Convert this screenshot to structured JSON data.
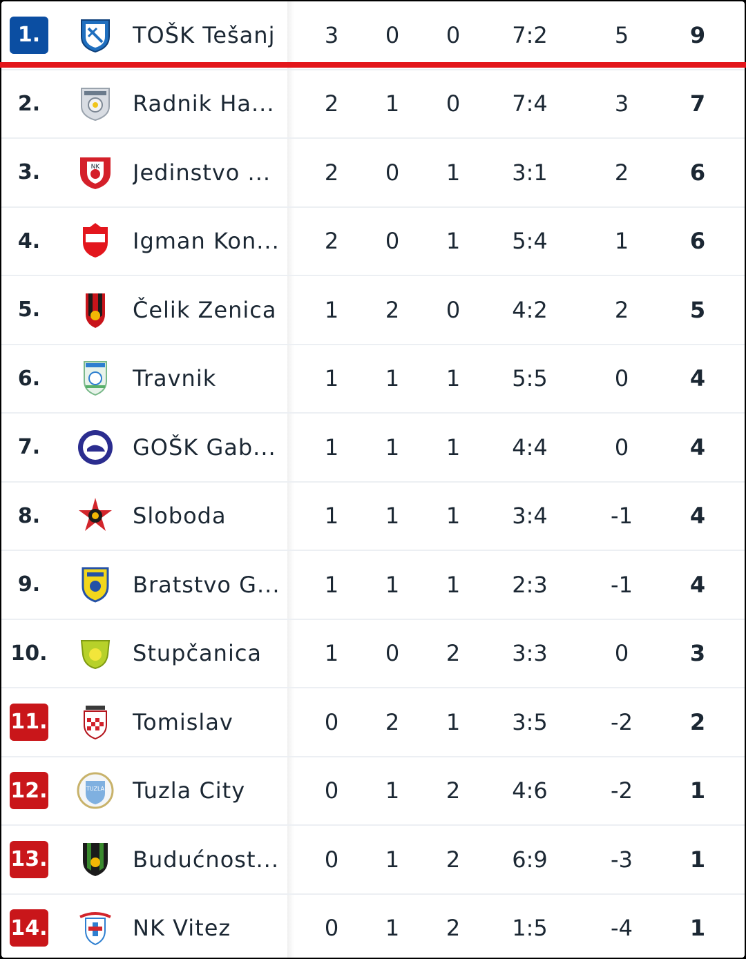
{
  "table": {
    "rows": [
      {
        "pos": "1.",
        "badge": "blue",
        "logo": "tosk-crest-icon",
        "team": "TOŠK Tešanj",
        "p": "3",
        "w": "0",
        "l": "0",
        "g": "7:2",
        "d": "5",
        "pts": "9"
      },
      {
        "pos": "2.",
        "badge": "",
        "logo": "radnik-crest-icon",
        "team": "Radnik Ha...",
        "p": "2",
        "w": "1",
        "l": "0",
        "g": "7:4",
        "d": "3",
        "pts": "7"
      },
      {
        "pos": "3.",
        "badge": "",
        "logo": "jedinstvo-crest-icon",
        "team": "Jedinstvo ...",
        "p": "2",
        "w": "0",
        "l": "1",
        "g": "3:1",
        "d": "2",
        "pts": "6"
      },
      {
        "pos": "4.",
        "badge": "",
        "logo": "igman-crest-icon",
        "team": "Igman Kon...",
        "p": "2",
        "w": "0",
        "l": "1",
        "g": "5:4",
        "d": "1",
        "pts": "6"
      },
      {
        "pos": "5.",
        "badge": "",
        "logo": "celik-crest-icon",
        "team": "Čelik Zenica",
        "p": "1",
        "w": "2",
        "l": "0",
        "g": "4:2",
        "d": "2",
        "pts": "5"
      },
      {
        "pos": "6.",
        "badge": "",
        "logo": "travnik-crest-icon",
        "team": "Travnik",
        "p": "1",
        "w": "1",
        "l": "1",
        "g": "5:5",
        "d": "0",
        "pts": "4"
      },
      {
        "pos": "7.",
        "badge": "",
        "logo": "gosk-crest-icon",
        "team": "GOŠK Gab...",
        "p": "1",
        "w": "1",
        "l": "1",
        "g": "4:4",
        "d": "0",
        "pts": "4"
      },
      {
        "pos": "8.",
        "badge": "",
        "logo": "sloboda-crest-icon",
        "team": "Sloboda",
        "p": "1",
        "w": "1",
        "l": "1",
        "g": "3:4",
        "d": "-1",
        "pts": "4"
      },
      {
        "pos": "9.",
        "badge": "",
        "logo": "bratstvo-crest-icon",
        "team": "Bratstvo G...",
        "p": "1",
        "w": "1",
        "l": "1",
        "g": "2:3",
        "d": "-1",
        "pts": "4"
      },
      {
        "pos": "10.",
        "badge": "",
        "logo": "stupcanica-crest-icon",
        "team": "Stupčanica",
        "p": "1",
        "w": "0",
        "l": "2",
        "g": "3:3",
        "d": "0",
        "pts": "3"
      },
      {
        "pos": "11.",
        "badge": "red",
        "logo": "tomislav-crest-icon",
        "team": "Tomislav",
        "p": "0",
        "w": "2",
        "l": "1",
        "g": "3:5",
        "d": "-2",
        "pts": "2"
      },
      {
        "pos": "12.",
        "badge": "red",
        "logo": "tuzla-city-crest-icon",
        "team": "Tuzla City",
        "p": "0",
        "w": "1",
        "l": "2",
        "g": "4:6",
        "d": "-2",
        "pts": "1"
      },
      {
        "pos": "13.",
        "badge": "red",
        "logo": "buducnost-crest-icon",
        "team": "Budućnost...",
        "p": "0",
        "w": "1",
        "l": "2",
        "g": "6:9",
        "d": "-3",
        "pts": "1"
      },
      {
        "pos": "14.",
        "badge": "red",
        "logo": "vitez-crest-icon",
        "team": "NK Vitez",
        "p": "0",
        "w": "1",
        "l": "2",
        "g": "1:5",
        "d": "-4",
        "pts": "1"
      }
    ]
  },
  "colors": {
    "promotion_badge": "#0b4ea2",
    "relegation_badge": "#c9161a",
    "leader_line": "#e3151a"
  }
}
